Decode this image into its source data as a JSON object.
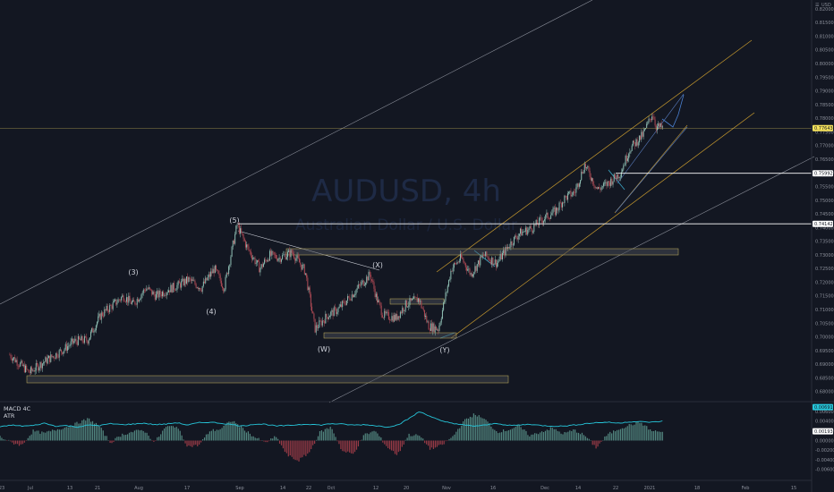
{
  "watermark": {
    "symbol": "AUDUSD, 4h",
    "description": "Australian Dollar / U.S. Dollar"
  },
  "currency": "USD",
  "price_tags": [
    {
      "value": "0.77643",
      "bg": "#f7e35c",
      "fg": "#131722"
    },
    {
      "value": "0.75992",
      "bg": "#ffffff",
      "fg": "#131722"
    },
    {
      "value": "0.74142",
      "bg": "#ffffff",
      "fg": "#131722"
    },
    {
      "value": "0.00691",
      "bg": "#26c6da",
      "fg": "#131722"
    },
    {
      "value": "0.00193",
      "bg": "#ffffff",
      "fg": "#131722"
    }
  ],
  "indicator_labels": [
    "MACD 4C",
    "ATR"
  ],
  "wave_labels": [
    "(3)",
    "(4)",
    "(5)",
    "(W)",
    "(X)",
    "(Y)"
  ],
  "chart_data": {
    "type": "candlestick",
    "title": "AUDUSD, 4h",
    "subtitle": "Australian Dollar / U.S. Dollar",
    "y_axis_ticks": [
      "0.82000",
      "0.81500",
      "0.81000",
      "0.80500",
      "0.80000",
      "0.79500",
      "0.79000",
      "0.78500",
      "0.78000",
      "0.77500",
      "0.77000",
      "0.76500",
      "0.76000",
      "0.75500",
      "0.75000",
      "0.74500",
      "0.74000",
      "0.73500",
      "0.73000",
      "0.72500",
      "0.72000",
      "0.71500",
      "0.71000",
      "0.70500",
      "0.70000",
      "0.69500",
      "0.69000",
      "0.68500",
      "0.68000"
    ],
    "indicator_ticks": [
      "0.00600",
      "0.00400",
      "0.00200",
      "0.00000",
      "-0.00200",
      "-0.00400",
      "-0.00600"
    ],
    "x_axis_ticks": [
      "23",
      "Jul",
      "13",
      "21",
      "Aug",
      "17",
      "Sep",
      "14",
      "22",
      "Oct",
      "12",
      "20",
      "Nov",
      "16",
      "Dec",
      "14",
      "22",
      "2021",
      "18",
      "Feb",
      "15"
    ],
    "ylim": [
      0.678,
      0.822
    ],
    "price_series": [
      [
        "2020-06-23",
        0.6935
      ],
      [
        "2020-06-29",
        0.687
      ],
      [
        "2020-07-03",
        0.6905
      ],
      [
        "2020-07-09",
        0.695
      ],
      [
        "2020-07-13",
        0.6985
      ],
      [
        "2020-07-17",
        0.699
      ],
      [
        "2020-07-21",
        0.708
      ],
      [
        "2020-07-24",
        0.711
      ],
      [
        "2020-07-28",
        0.715
      ],
      [
        "2020-07-31",
        0.712
      ],
      [
        "2020-08-04",
        0.718
      ],
      [
        "2020-08-07",
        0.715
      ],
      [
        "2020-08-11",
        0.7175
      ],
      [
        "2020-08-14",
        0.719
      ],
      [
        "2020-08-17",
        0.721
      ],
      [
        "2020-08-21",
        0.718
      ],
      [
        "2020-08-25",
        0.725
      ],
      [
        "2020-08-28",
        0.718
      ],
      [
        "2020-09-01",
        0.741
      ],
      [
        "2020-09-04",
        0.733
      ],
      [
        "2020-09-08",
        0.725
      ],
      [
        "2020-09-11",
        0.73
      ],
      [
        "2020-09-14",
        0.729
      ],
      [
        "2020-09-18",
        0.731
      ],
      [
        "2020-09-22",
        0.724
      ],
      [
        "2020-09-25",
        0.703
      ],
      [
        "2020-09-29",
        0.708
      ],
      [
        "2020-10-02",
        0.71
      ],
      [
        "2020-10-06",
        0.715
      ],
      [
        "2020-10-09",
        0.719
      ],
      [
        "2020-10-12",
        0.723
      ],
      [
        "2020-10-14",
        0.714
      ],
      [
        "2020-10-16",
        0.708
      ],
      [
        "2020-10-20",
        0.707
      ],
      [
        "2020-10-23",
        0.712
      ],
      [
        "2020-10-27",
        0.714
      ],
      [
        "2020-10-30",
        0.704
      ],
      [
        "2020-11-02",
        0.703
      ],
      [
        "2020-11-06",
        0.725
      ],
      [
        "2020-11-09",
        0.729
      ],
      [
        "2020-11-12",
        0.723
      ],
      [
        "2020-11-16",
        0.73
      ],
      [
        "2020-11-20",
        0.727
      ],
      [
        "2020-11-24",
        0.734
      ],
      [
        "2020-11-27",
        0.738
      ],
      [
        "2020-12-01",
        0.74
      ],
      [
        "2020-12-04",
        0.743
      ],
      [
        "2020-12-08",
        0.746
      ],
      [
        "2020-12-11",
        0.751
      ],
      [
        "2020-12-14",
        0.753
      ],
      [
        "2020-12-17",
        0.763
      ],
      [
        "2020-12-21",
        0.754
      ],
      [
        "2020-12-24",
        0.756
      ],
      [
        "2020-12-28",
        0.76
      ],
      [
        "2020-12-31",
        0.769
      ],
      [
        "2021-01-04",
        0.774
      ],
      [
        "2021-01-07",
        0.782
      ],
      [
        "2021-01-08",
        0.777
      ],
      [
        "2021-01-10",
        0.7765
      ]
    ],
    "horizontal_levels": [
      {
        "price": 0.77643,
        "color": "#c9b458"
      },
      {
        "price": 0.75992,
        "color": "#ffffff"
      },
      {
        "price": 0.74142,
        "color": "#ffffff"
      }
    ],
    "indicator": {
      "names": [
        "MACD 4C",
        "ATR"
      ],
      "ylim": [
        -0.0075,
        0.0075
      ],
      "atr": [
        0.0028,
        0.0032,
        0.003,
        0.0031,
        0.0036,
        0.003,
        0.0031,
        0.0028,
        0.0032,
        0.0031,
        0.0035,
        0.0033,
        0.0034,
        0.0036,
        0.0033,
        0.0034,
        0.0037,
        0.0032,
        0.0037,
        0.0038,
        0.0036,
        0.0033,
        0.003,
        0.0034,
        0.0034,
        0.003,
        0.0031,
        0.0033,
        0.0034,
        0.0032,
        0.0035,
        0.0034,
        0.0032,
        0.0033,
        0.0031,
        0.0028,
        0.0032,
        0.0045,
        0.006,
        0.005,
        0.004,
        0.0036,
        0.0032,
        0.003,
        0.0032,
        0.0036,
        0.0031,
        0.0032,
        0.0034,
        0.0031,
        0.003,
        0.003,
        0.0032,
        0.0035,
        0.0037,
        0.0038,
        0.0036,
        0.0039,
        0.0039,
        0.0038,
        0.004
      ],
      "macd": [
        0.0008,
        -0.0004,
        -0.001,
        0.002,
        0.0015,
        0.0022,
        0.0028,
        0.0036,
        0.0045,
        0.003,
        -0.0005,
        0.0012,
        0.0018,
        0.0022,
        -0.0004,
        0.0028,
        0.003,
        -0.0012,
        -0.001,
        0.002,
        0.0024,
        0.0042,
        0.0025,
        0.0008,
        -0.0005,
        0.0008,
        -0.003,
        -0.0042,
        -0.0025,
        0.0018,
        0.0028,
        -0.0022,
        -0.0028,
        0.0012,
        0.002,
        -0.0012,
        -0.003,
        0.0012,
        0.001,
        -0.0018,
        -0.001,
        0.0008,
        0.004,
        0.0055,
        0.0042,
        0.0018,
        0.0022,
        0.003,
        0.001,
        0.0018,
        0.0026,
        0.0014,
        0.0022,
        0.001,
        -0.0015,
        0.0012,
        0.0024,
        0.0032,
        0.0038,
        0.002,
        0.0018
      ]
    }
  }
}
